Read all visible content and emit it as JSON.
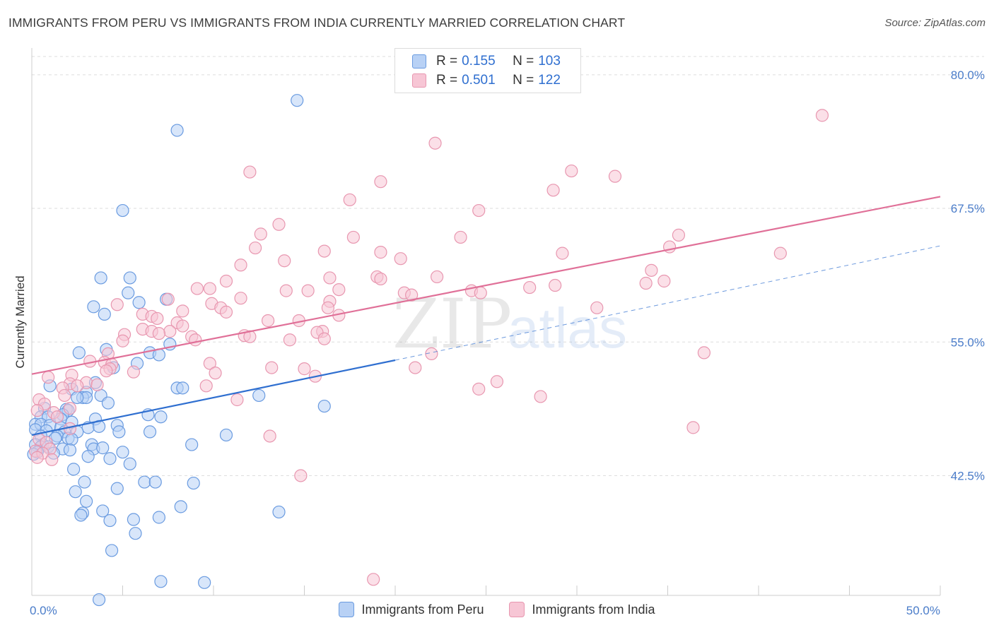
{
  "header": {
    "title": "IMMIGRANTS FROM PERU VS IMMIGRANTS FROM INDIA CURRENTLY MARRIED CORRELATION CHART",
    "source": "Source: ZipAtlas.com"
  },
  "watermark": {
    "zip": "ZIP",
    "atlas": "atlas"
  },
  "legend": {
    "rows": [
      {
        "r_label": "R = ",
        "r_value": "0.155",
        "n_label": "N = ",
        "n_value": "103"
      },
      {
        "r_label": "R = ",
        "r_value": "0.501",
        "n_label": "N = ",
        "n_value": "122"
      }
    ]
  },
  "colors": {
    "peru_fill": "#b8d1f5",
    "peru_stroke": "#6a9be0",
    "peru_line": "#2f6fd0",
    "india_fill": "#f7c6d5",
    "india_stroke": "#e897b0",
    "india_line": "#e07098",
    "grid": "#dddddd"
  },
  "chart_data": {
    "type": "scatter",
    "ylabel": "Currently Married",
    "xlim": [
      0,
      50
    ],
    "ylim": [
      31.3,
      82.5
    ],
    "x_tick_labels": [
      {
        "value": 0,
        "label": "0.0%"
      },
      {
        "value": 50,
        "label": "50.0%"
      }
    ],
    "x_minor_ticks": [
      0,
      5,
      10,
      15,
      20,
      25,
      30,
      35,
      40,
      45,
      50
    ],
    "y_ticks": [
      {
        "value": 80.0,
        "label": "80.0%"
      },
      {
        "value": 67.5,
        "label": "67.5%"
      },
      {
        "value": 55.0,
        "label": "55.0%"
      },
      {
        "value": 42.5,
        "label": "42.5%"
      }
    ],
    "series": [
      {
        "name": "Immigrants from Peru",
        "trend": {
          "x": [
            0,
            20
          ],
          "y": [
            46.3,
            53.3
          ],
          "dashed_to": {
            "x": 50,
            "y": 64.0
          }
        },
        "points": [
          [
            14.6,
            77.6
          ],
          [
            8.0,
            74.8
          ],
          [
            5.0,
            67.3
          ],
          [
            3.8,
            61.0
          ],
          [
            5.4,
            61.0
          ],
          [
            5.3,
            59.6
          ],
          [
            7.4,
            59.0
          ],
          [
            5.9,
            58.7
          ],
          [
            3.4,
            58.3
          ],
          [
            4.0,
            57.6
          ],
          [
            7.6,
            54.8
          ],
          [
            4.1,
            54.3
          ],
          [
            2.6,
            54.0
          ],
          [
            6.5,
            54.0
          ],
          [
            7.0,
            53.8
          ],
          [
            5.8,
            53.0
          ],
          [
            4.5,
            52.6
          ],
          [
            3.5,
            51.2
          ],
          [
            1.0,
            50.9
          ],
          [
            8.0,
            50.7
          ],
          [
            8.3,
            50.7
          ],
          [
            2.2,
            50.6
          ],
          [
            3.0,
            50.3
          ],
          [
            12.5,
            50.0
          ],
          [
            3.8,
            50.0
          ],
          [
            2.8,
            49.8
          ],
          [
            3.0,
            49.8
          ],
          [
            2.5,
            49.8
          ],
          [
            4.2,
            49.3
          ],
          [
            16.1,
            49.0
          ],
          [
            0.7,
            48.8
          ],
          [
            1.9,
            48.7
          ],
          [
            2.0,
            48.6
          ],
          [
            6.4,
            48.2
          ],
          [
            7.1,
            48.0
          ],
          [
            0.5,
            48.0
          ],
          [
            1.7,
            48.2
          ],
          [
            0.9,
            48.0
          ],
          [
            1.6,
            47.8
          ],
          [
            3.5,
            47.8
          ],
          [
            2.2,
            47.5
          ],
          [
            0.2,
            47.3
          ],
          [
            0.5,
            47.3
          ],
          [
            1.0,
            47.2
          ],
          [
            1.6,
            47.0
          ],
          [
            3.1,
            47.0
          ],
          [
            3.7,
            47.1
          ],
          [
            4.7,
            47.2
          ],
          [
            0.2,
            46.8
          ],
          [
            0.8,
            46.7
          ],
          [
            1.8,
            46.6
          ],
          [
            2.5,
            46.6
          ],
          [
            4.8,
            46.6
          ],
          [
            6.5,
            46.6
          ],
          [
            10.7,
            46.3
          ],
          [
            0.5,
            46.2
          ],
          [
            1.4,
            46.2
          ],
          [
            1.3,
            46.0
          ],
          [
            2.0,
            46.0
          ],
          [
            2.2,
            45.9
          ],
          [
            0.6,
            45.4
          ],
          [
            0.2,
            45.4
          ],
          [
            0.5,
            45.2
          ],
          [
            0.9,
            45.2
          ],
          [
            3.3,
            45.4
          ],
          [
            8.8,
            45.4
          ],
          [
            1.7,
            45.0
          ],
          [
            3.4,
            45.0
          ],
          [
            3.9,
            45.1
          ],
          [
            0.3,
            44.7
          ],
          [
            1.2,
            44.6
          ],
          [
            2.1,
            44.9
          ],
          [
            5.0,
            44.7
          ],
          [
            0.1,
            44.5
          ],
          [
            3.1,
            44.3
          ],
          [
            4.3,
            44.1
          ],
          [
            5.4,
            43.6
          ],
          [
            2.3,
            43.1
          ],
          [
            2.9,
            41.9
          ],
          [
            6.2,
            41.9
          ],
          [
            6.8,
            41.9
          ],
          [
            8.9,
            41.8
          ],
          [
            4.7,
            41.3
          ],
          [
            2.4,
            41.0
          ],
          [
            3.0,
            40.1
          ],
          [
            8.2,
            39.6
          ],
          [
            2.8,
            39.0
          ],
          [
            2.7,
            38.8
          ],
          [
            3.9,
            39.2
          ],
          [
            13.6,
            39.1
          ],
          [
            7.0,
            38.6
          ],
          [
            4.3,
            38.3
          ],
          [
            5.6,
            38.4
          ],
          [
            5.7,
            37.1
          ],
          [
            4.4,
            35.5
          ],
          [
            7.1,
            32.6
          ],
          [
            9.5,
            32.5
          ],
          [
            3.7,
            30.9
          ]
        ]
      },
      {
        "name": "Immigrants from India",
        "trend": {
          "x": [
            0,
            50
          ],
          "y": [
            52.0,
            68.6
          ]
        },
        "points": [
          [
            43.5,
            76.2
          ],
          [
            22.2,
            73.6
          ],
          [
            29.7,
            71.0
          ],
          [
            12.0,
            70.9
          ],
          [
            32.1,
            70.5
          ],
          [
            19.2,
            70.0
          ],
          [
            28.7,
            69.2
          ],
          [
            17.5,
            68.3
          ],
          [
            24.6,
            67.3
          ],
          [
            13.6,
            66.0
          ],
          [
            12.6,
            65.1
          ],
          [
            23.6,
            64.8
          ],
          [
            35.6,
            65.0
          ],
          [
            17.7,
            64.8
          ],
          [
            12.3,
            63.8
          ],
          [
            35.1,
            63.9
          ],
          [
            16.1,
            63.5
          ],
          [
            19.2,
            63.4
          ],
          [
            29.2,
            63.3
          ],
          [
            13.9,
            62.6
          ],
          [
            20.3,
            62.8
          ],
          [
            41.2,
            63.3
          ],
          [
            11.5,
            62.2
          ],
          [
            34.1,
            61.7
          ],
          [
            16.4,
            61.0
          ],
          [
            19.0,
            61.1
          ],
          [
            19.2,
            60.9
          ],
          [
            22.3,
            61.1
          ],
          [
            10.7,
            60.7
          ],
          [
            34.8,
            60.7
          ],
          [
            33.8,
            60.5
          ],
          [
            27.4,
            60.1
          ],
          [
            28.8,
            60.3
          ],
          [
            9.1,
            60.0
          ],
          [
            9.8,
            60.0
          ],
          [
            14.0,
            59.8
          ],
          [
            15.2,
            59.8
          ],
          [
            16.9,
            59.9
          ],
          [
            24.2,
            59.8
          ],
          [
            24.7,
            59.6
          ],
          [
            20.5,
            59.6
          ],
          [
            20.9,
            59.4
          ],
          [
            11.5,
            59.1
          ],
          [
            7.5,
            59.0
          ],
          [
            16.4,
            58.8
          ],
          [
            9.9,
            58.6
          ],
          [
            4.7,
            58.5
          ],
          [
            10.4,
            58.2
          ],
          [
            31.1,
            58.2
          ],
          [
            16.3,
            58.2
          ],
          [
            8.3,
            57.9
          ],
          [
            10.7,
            57.8
          ],
          [
            6.1,
            57.6
          ],
          [
            6.6,
            57.4
          ],
          [
            16.9,
            57.5
          ],
          [
            6.9,
            57.2
          ],
          [
            13.0,
            57.0
          ],
          [
            14.7,
            57.0
          ],
          [
            8.0,
            56.8
          ],
          [
            8.3,
            56.5
          ],
          [
            6.1,
            56.2
          ],
          [
            7.6,
            56.0
          ],
          [
            6.6,
            56.0
          ],
          [
            16.0,
            56.0
          ],
          [
            15.7,
            55.9
          ],
          [
            5.1,
            55.7
          ],
          [
            7.0,
            55.8
          ],
          [
            11.7,
            55.6
          ],
          [
            8.8,
            55.5
          ],
          [
            12.0,
            55.5
          ],
          [
            14.2,
            55.2
          ],
          [
            5.0,
            55.1
          ],
          [
            16.1,
            55.3
          ],
          [
            9.0,
            55.2
          ],
          [
            37.0,
            54.0
          ],
          [
            22.0,
            53.9
          ],
          [
            4.2,
            53.9
          ],
          [
            3.2,
            53.2
          ],
          [
            9.8,
            53.0
          ],
          [
            4.0,
            53.1
          ],
          [
            4.4,
            52.9
          ],
          [
            15.0,
            52.5
          ],
          [
            13.2,
            52.6
          ],
          [
            4.3,
            52.5
          ],
          [
            4.1,
            52.3
          ],
          [
            5.6,
            52.2
          ],
          [
            10.1,
            52.1
          ],
          [
            2.2,
            51.9
          ],
          [
            15.6,
            51.8
          ],
          [
            21.1,
            52.6
          ],
          [
            0.9,
            51.7
          ],
          [
            2.1,
            51.1
          ],
          [
            3.0,
            51.2
          ],
          [
            2.5,
            50.9
          ],
          [
            1.7,
            50.7
          ],
          [
            3.6,
            51.0
          ],
          [
            25.6,
            51.3
          ],
          [
            24.6,
            50.6
          ],
          [
            9.6,
            50.9
          ],
          [
            28.0,
            49.9
          ],
          [
            1.8,
            50.0
          ],
          [
            11.3,
            49.6
          ],
          [
            0.4,
            49.6
          ],
          [
            0.7,
            49.2
          ],
          [
            2.1,
            48.8
          ],
          [
            0.3,
            48.6
          ],
          [
            1.2,
            48.4
          ],
          [
            1.4,
            48.0
          ],
          [
            36.4,
            47.0
          ],
          [
            13.1,
            46.2
          ],
          [
            2.1,
            46.9
          ],
          [
            0.4,
            45.9
          ],
          [
            0.8,
            45.6
          ],
          [
            1.0,
            45.0
          ],
          [
            0.2,
            44.8
          ],
          [
            0.6,
            44.6
          ],
          [
            0.3,
            44.2
          ],
          [
            1.1,
            44.0
          ],
          [
            14.8,
            42.5
          ],
          [
            18.8,
            32.8
          ]
        ]
      }
    ]
  },
  "bottom_legend": {
    "peru": "Immigrants from Peru",
    "india": "Immigrants from India"
  }
}
